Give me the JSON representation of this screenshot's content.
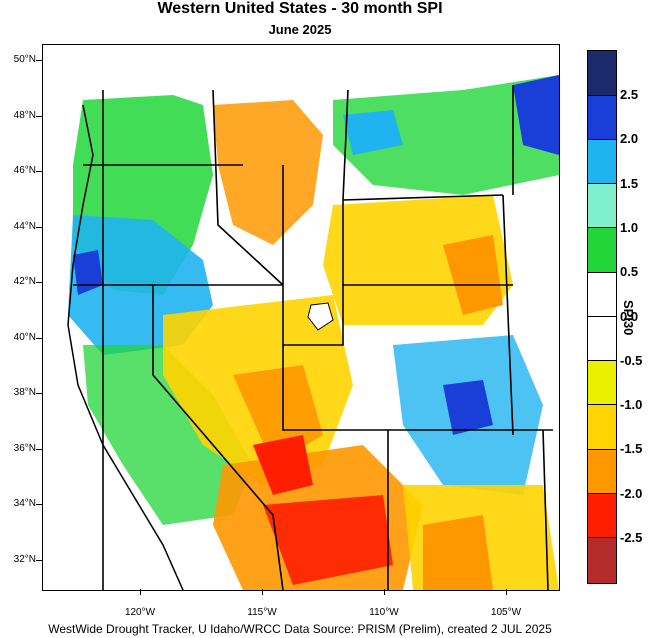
{
  "title": "Western United States - 30 month SPI",
  "subtitle": "June 2025",
  "footer": "WestWide Drought Tracker, U Idaho/WRCC Data Source: PRISM (Prelim), created  2 JUL 2025",
  "colorbar_title": "SPI30",
  "latitude_labels": [
    "50°N",
    "48°N",
    "46°N",
    "44°N",
    "42°N",
    "40°N",
    "38°N",
    "36°N",
    "34°N",
    "32°N"
  ],
  "longitude_labels": [
    "120°W",
    "115°W",
    "110°W",
    "105°W"
  ],
  "colorbar_labels": [
    "2.5",
    "2.0",
    "1.5",
    "1.0",
    "0.5",
    "0.0",
    "-0.5",
    "-1.0",
    "-1.5",
    "-2.0",
    "-2.5"
  ],
  "colorbar_colors": [
    "#1b2a6b",
    "#1a3fd8",
    "#1fb4f0",
    "#7ff0cc",
    "#22d63a",
    "#ffffff",
    "#ffffff",
    "#e8f000",
    "#ffd400",
    "#ff9800",
    "#ff1e00",
    "#b52a2a"
  ],
  "regions": {
    "wet_color": "#1fb4f0",
    "very_wet_color": "#1a3fd8",
    "moist_color": "#22d63a",
    "dry_color": "#ffd400",
    "very_dry_color": "#ff9800",
    "extreme_dry_color": "#ff1e00"
  }
}
